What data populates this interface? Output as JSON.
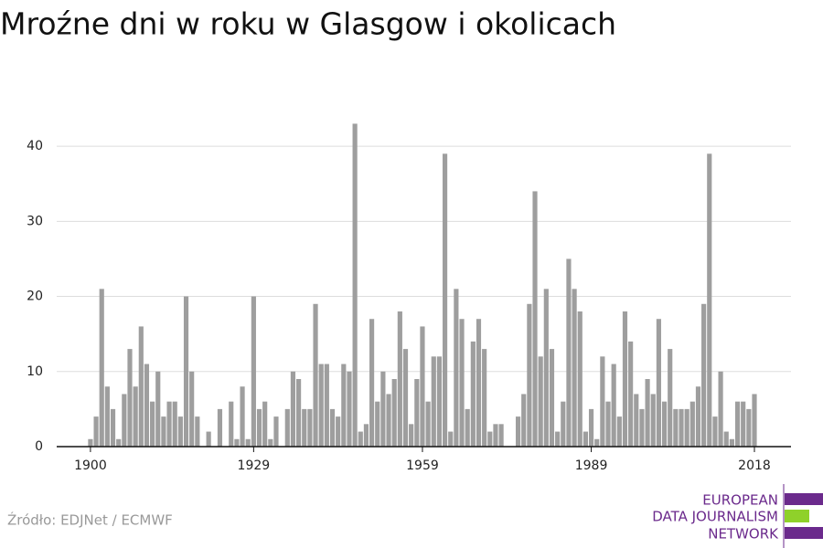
{
  "chart_data": {
    "type": "bar",
    "title": "Mroźne dni w roku w Glasgow i okolicach",
    "source": "Źródło: EDJNet / ECMWF",
    "logo": [
      "EUROPEAN",
      "DATA JOURNALISM",
      "NETWORK"
    ],
    "color": "#9e9e9e",
    "x": [
      1900,
      1901,
      1902,
      1903,
      1904,
      1905,
      1906,
      1907,
      1908,
      1909,
      1910,
      1911,
      1912,
      1913,
      1914,
      1915,
      1916,
      1917,
      1918,
      1919,
      1920,
      1921,
      1922,
      1923,
      1924,
      1925,
      1926,
      1927,
      1928,
      1929,
      1930,
      1931,
      1932,
      1933,
      1934,
      1935,
      1936,
      1937,
      1938,
      1939,
      1940,
      1941,
      1942,
      1943,
      1944,
      1945,
      1946,
      1947,
      1948,
      1949,
      1950,
      1951,
      1952,
      1953,
      1954,
      1955,
      1956,
      1957,
      1958,
      1959,
      1960,
      1961,
      1962,
      1963,
      1964,
      1965,
      1966,
      1967,
      1968,
      1969,
      1970,
      1971,
      1972,
      1973,
      1974,
      1975,
      1976,
      1977,
      1978,
      1979,
      1980,
      1981,
      1982,
      1983,
      1984,
      1985,
      1986,
      1987,
      1988,
      1989,
      1990,
      1991,
      1992,
      1993,
      1994,
      1995,
      1996,
      1997,
      1998,
      1999,
      2000,
      2001,
      2002,
      2003,
      2004,
      2005,
      2006,
      2007,
      2008,
      2009,
      2010,
      2011,
      2012,
      2013,
      2014,
      2015,
      2016,
      2017,
      2018
    ],
    "values": [
      1,
      4,
      21,
      8,
      5,
      1,
      7,
      13,
      8,
      16,
      11,
      6,
      10,
      4,
      6,
      6,
      4,
      20,
      10,
      4,
      0,
      2,
      0,
      5,
      0,
      6,
      1,
      8,
      1,
      20,
      5,
      6,
      1,
      4,
      0,
      5,
      10,
      9,
      5,
      5,
      19,
      11,
      11,
      5,
      4,
      11,
      10,
      43,
      2,
      3,
      17,
      6,
      10,
      7,
      9,
      18,
      13,
      3,
      9,
      16,
      6,
      12,
      12,
      39,
      2,
      21,
      17,
      5,
      14,
      17,
      13,
      2,
      3,
      3,
      0,
      0,
      4,
      7,
      19,
      34,
      12,
      21,
      13,
      2,
      6,
      25,
      21,
      18,
      2,
      5,
      1,
      12,
      6,
      11,
      4,
      18,
      14,
      7,
      5,
      9,
      7,
      17,
      6,
      13,
      5,
      5,
      5,
      6,
      8,
      19,
      39,
      4,
      10,
      2,
      1,
      6,
      6,
      5,
      7
    ],
    "xlim": [
      1894,
      2024.5
    ],
    "xticks": [
      1900,
      1929,
      1959,
      1989,
      2018
    ],
    "ylim": [
      0,
      40.5
    ],
    "yticks": [
      0,
      10,
      20,
      30,
      40
    ],
    "grid": true
  }
}
